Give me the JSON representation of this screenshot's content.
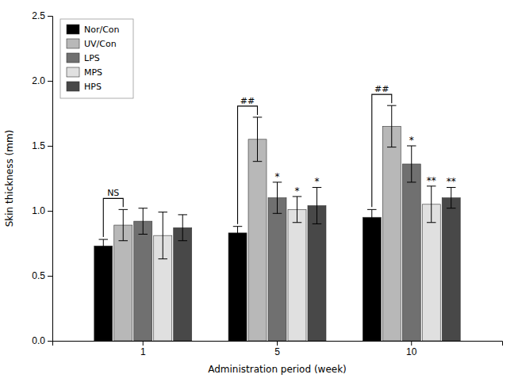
{
  "chart_data": {
    "type": "bar",
    "xlabel": "Administration period (week)",
    "ylabel": "Skin thickness (mm)",
    "categories": [
      "1",
      "5",
      "10"
    ],
    "series": [
      {
        "name": "Nor/Con",
        "color": "#000000",
        "values": [
          0.73,
          0.83,
          0.95
        ],
        "errors": [
          0.05,
          0.05,
          0.06
        ]
      },
      {
        "name": "UV/Con",
        "color": "#b8b8b8",
        "values": [
          0.89,
          1.55,
          1.65
        ],
        "errors": [
          0.12,
          0.17,
          0.16
        ]
      },
      {
        "name": "LPS",
        "color": "#707070",
        "values": [
          0.92,
          1.1,
          1.36
        ],
        "errors": [
          0.1,
          0.12,
          0.14
        ]
      },
      {
        "name": "MPS",
        "color": "#e0e0e0",
        "values": [
          0.81,
          1.01,
          1.05
        ],
        "errors": [
          0.18,
          0.1,
          0.14
        ]
      },
      {
        "name": "HPS",
        "color": "#484848",
        "values": [
          0.87,
          1.04,
          1.1
        ],
        "errors": [
          0.1,
          0.14,
          0.08
        ]
      }
    ],
    "ylim": [
      0.0,
      2.5
    ],
    "yticks": [
      {
        "value": 0,
        "label": "0.0"
      },
      0.5,
      {
        "value": 1,
        "label": "1.0"
      },
      1.5,
      {
        "value": 2,
        "label": "2.0"
      },
      2.5
    ],
    "grid": false,
    "legend": "upper left",
    "annotations": [
      {
        "text": "NS",
        "category": "1",
        "series": [
          "Nor/Con",
          "UV/Con"
        ]
      },
      {
        "text": "##",
        "category": "5",
        "series": [
          "Nor/Con",
          "UV/Con"
        ]
      },
      {
        "text": "*",
        "category": "5",
        "series": [
          "LPS"
        ]
      },
      {
        "text": "*",
        "category": "5",
        "series": [
          "MPS"
        ]
      },
      {
        "text": "*",
        "category": "5",
        "series": [
          "HPS"
        ]
      },
      {
        "text": "##",
        "category": "10",
        "series": [
          "Nor/Con",
          "UV/Con"
        ]
      },
      {
        "text": "*",
        "category": "10",
        "series": [
          "LPS"
        ]
      },
      {
        "text": "**",
        "category": "10",
        "series": [
          "MPS"
        ]
      },
      {
        "text": "**",
        "category": "10",
        "series": [
          "HPS"
        ]
      }
    ]
  }
}
